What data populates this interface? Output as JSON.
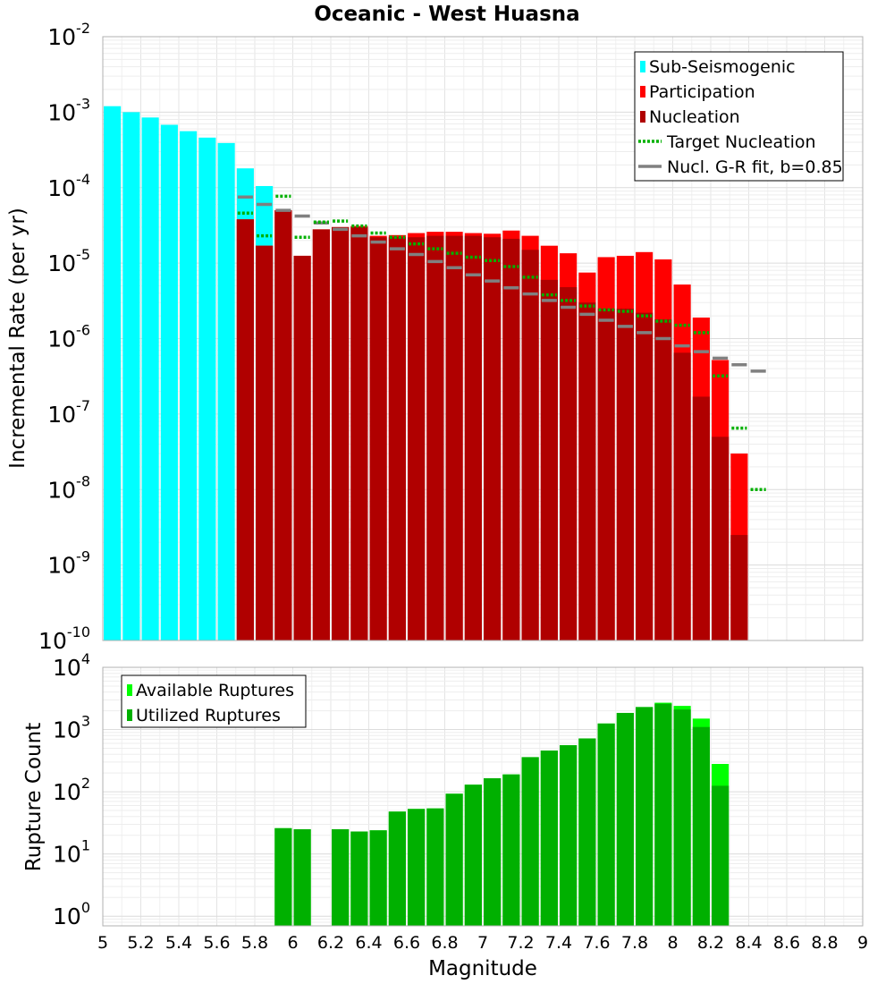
{
  "chart_data": [
    {
      "type": "bar",
      "title": "Oceanic - West Huasna",
      "xlabel": "",
      "ylabel": "Incremental Rate (per yr)",
      "y_scale": "log",
      "xlim": [
        5,
        9
      ],
      "ylim": [
        1e-10,
        0.01
      ],
      "grid": true,
      "legend_placement": "top-right",
      "colors": {
        "sub_seismogenic": "#00ffff",
        "participation": "#ff0000",
        "nucleation": "#b00000",
        "target_nucleation": "#00b000",
        "gr_fit": "#808080"
      },
      "legend": [
        "Sub-Seismogenic",
        "Participation",
        "Nucleation",
        "Target Nucleation",
        "Nucl. G-R fit, b=0.85"
      ],
      "series": [
        {
          "name": "Sub-Seismogenic",
          "x": [
            5.05,
            5.15,
            5.25,
            5.35,
            5.45,
            5.55,
            5.65,
            5.75,
            5.85
          ],
          "values": [
            0.0012,
            0.001,
            0.00085,
            0.00068,
            0.00056,
            0.00046,
            0.00039,
            0.00018,
            0.000105
          ]
        },
        {
          "name": "Participation",
          "x": [
            5.75,
            5.85,
            5.95,
            6.05,
            6.15,
            6.25,
            6.35,
            6.45,
            6.55,
            6.65,
            6.75,
            6.85,
            6.95,
            7.05,
            7.15,
            7.25,
            7.35,
            7.45,
            7.55,
            7.65,
            7.75,
            7.85,
            7.95,
            8.05,
            8.15,
            8.25,
            8.35
          ],
          "values": [
            3.8e-05,
            1.7e-05,
            5e-05,
            1.25e-05,
            2.8e-05,
            3e-05,
            3.1e-05,
            2.3e-05,
            2.35e-05,
            2.5e-05,
            2.6e-05,
            2.6e-05,
            2.5e-05,
            2.45e-05,
            2.7e-05,
            2.3e-05,
            1.7e-05,
            1.35e-05,
            7.5e-06,
            1.2e-05,
            1.25e-05,
            1.4e-05,
            1.12e-05,
            5.2e-06,
            1.9e-06,
            5.2e-07,
            3e-08
          ]
        },
        {
          "name": "Nucleation",
          "x": [
            5.75,
            5.85,
            5.95,
            6.05,
            6.15,
            6.25,
            6.35,
            6.45,
            6.55,
            6.65,
            6.75,
            6.85,
            6.95,
            7.05,
            7.15,
            7.25,
            7.35,
            7.45,
            7.55,
            7.65,
            7.75,
            7.85,
            7.95,
            8.05,
            8.15,
            8.25,
            8.35
          ],
          "values": [
            3.8e-05,
            1.7e-05,
            5e-05,
            1.25e-05,
            2.8e-05,
            3e-05,
            3e-05,
            2.2e-05,
            2.2e-05,
            2.2e-05,
            2.3e-05,
            2.3e-05,
            2.3e-05,
            2.2e-05,
            2.1e-05,
            1.5e-05,
            6e-06,
            4.8e-06,
            3e-06,
            2.5e-06,
            2.5e-06,
            2.2e-06,
            1.8e-06,
            6.5e-07,
            1.7e-07,
            5e-08,
            2.5e-09
          ]
        },
        {
          "name": "Target Nucleation",
          "x": [
            5.75,
            5.85,
            5.95,
            6.05,
            6.15,
            6.25,
            6.35,
            6.45,
            6.55,
            6.65,
            6.75,
            6.85,
            6.95,
            7.05,
            7.15,
            7.25,
            7.35,
            7.45,
            7.55,
            7.65,
            7.75,
            7.85,
            7.95,
            8.05,
            8.15,
            8.25,
            8.35,
            8.45
          ],
          "values": [
            4.6e-05,
            2.3e-05,
            7.7e-05,
            2.2e-05,
            3.5e-05,
            3.6e-05,
            3.1e-05,
            2.5e-05,
            2.2e-05,
            1.8e-05,
            1.55e-05,
            1.35e-05,
            1.2e-05,
            1.08e-05,
            9e-06,
            6.5e-06,
            3.8e-06,
            3.2e-06,
            2.7e-06,
            2.4e-06,
            2.3e-06,
            2e-06,
            1.7e-06,
            1.5e-06,
            1.2e-06,
            3.2e-07,
            6.5e-08,
            1e-08
          ]
        },
        {
          "name": "Nucl. G-R fit, b=0.85",
          "x": [
            5.75,
            5.85,
            5.95,
            6.05,
            6.15,
            6.25,
            6.35,
            6.45,
            6.55,
            6.65,
            6.75,
            6.85,
            6.95,
            7.05,
            7.15,
            7.25,
            7.35,
            7.45,
            7.55,
            7.65,
            7.75,
            7.85,
            7.95,
            8.05,
            8.15,
            8.25,
            8.35,
            8.45
          ],
          "values": [
            7.5e-05,
            6e-05,
            5e-05,
            4.2e-05,
            3.4e-05,
            2.8e-05,
            2.3e-05,
            1.9e-05,
            1.55e-05,
            1.3e-05,
            1.05e-05,
            8.7e-06,
            7e-06,
            5.8e-06,
            4.7e-06,
            3.9e-06,
            3.2e-06,
            2.6e-06,
            2.1e-06,
            1.75e-06,
            1.45e-06,
            1.2e-06,
            1e-06,
            8e-07,
            6.7e-07,
            5.5e-07,
            4.5e-07,
            3.7e-07
          ]
        }
      ]
    },
    {
      "type": "bar",
      "title": "",
      "xlabel": "Magnitude",
      "ylabel": "Rupture Count",
      "y_scale": "log",
      "xlim": [
        5,
        9
      ],
      "ylim": [
        0.7,
        10000
      ],
      "grid": true,
      "legend_placement": "top-left",
      "x_ticks": [
        "5",
        "5.2",
        "5.4",
        "5.6",
        "5.8",
        "6",
        "6.2",
        "6.4",
        "6.6",
        "6.8",
        "7",
        "7.2",
        "7.4",
        "7.6",
        "7.8",
        "8",
        "8.2",
        "8.4",
        "8.6",
        "8.8",
        "9"
      ],
      "colors": {
        "available": "#00ff00",
        "utilized": "#00b000"
      },
      "legend": [
        "Available Ruptures",
        "Utilized Ruptures"
      ],
      "series": [
        {
          "name": "Available Ruptures",
          "x": [
            5.95,
            6.05,
            6.25,
            6.35,
            6.45,
            6.55,
            6.65,
            6.75,
            6.85,
            6.95,
            7.05,
            7.15,
            7.25,
            7.35,
            7.45,
            7.55,
            7.65,
            7.75,
            7.85,
            7.95,
            8.05,
            8.15,
            8.25
          ],
          "values": [
            26,
            25,
            25,
            23,
            24,
            48,
            53,
            54,
            93,
            130,
            165,
            190,
            360,
            460,
            560,
            720,
            1250,
            1850,
            2300,
            2700,
            2400,
            1500,
            280
          ]
        },
        {
          "name": "Utilized Ruptures",
          "x": [
            5.95,
            6.05,
            6.25,
            6.35,
            6.45,
            6.55,
            6.65,
            6.75,
            6.85,
            6.95,
            7.05,
            7.15,
            7.25,
            7.35,
            7.45,
            7.55,
            7.65,
            7.75,
            7.85,
            7.95,
            8.05,
            8.15,
            8.25
          ],
          "values": [
            26,
            25,
            25,
            23,
            24,
            48,
            53,
            54,
            93,
            130,
            165,
            190,
            360,
            460,
            560,
            720,
            1250,
            1850,
            2300,
            2600,
            2100,
            1100,
            125
          ]
        }
      ]
    }
  ]
}
